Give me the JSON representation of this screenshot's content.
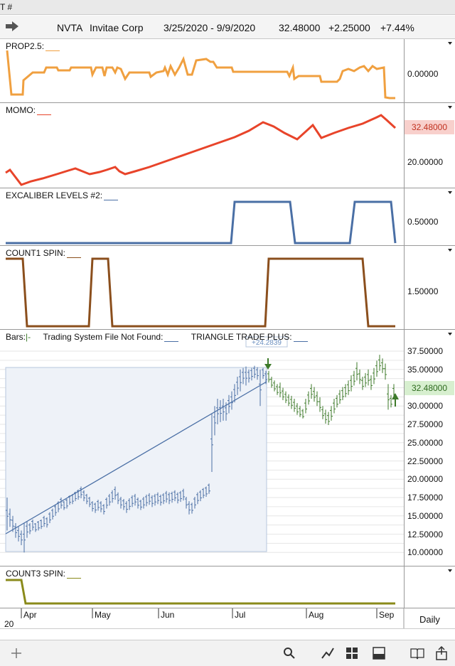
{
  "topbar": {
    "text": "T #"
  },
  "header": {
    "symbol": "NVTA",
    "company": "Invitae Corp",
    "range": "3/25/2020 - 9/9/2020",
    "price": "32.48000",
    "change": "+2.25000",
    "pct": "+7.44%"
  },
  "panes": {
    "prop": {
      "title": "PROP2.5:",
      "ticks": [
        "0.00000"
      ],
      "color": "#f0a040"
    },
    "momo": {
      "title": "MOMO:",
      "ticks": [
        "20.00000"
      ],
      "value": "32.48000",
      "color": "#e8442a"
    },
    "excal": {
      "title": "EXCALIBER LEVELS #2:",
      "ticks": [
        "0.50000"
      ],
      "color": "#4a6fa5"
    },
    "count1": {
      "title": "COUNT1 SPIN:",
      "ticks": [
        "1.50000"
      ],
      "color": "#8b4f1d"
    },
    "bars": {
      "title_bars": "Bars:",
      "title_system": "Trading System File Not Found:",
      "title_triangle": "TRIANGLE TRADE PLUS:",
      "ticks": [
        "37.50000",
        "35.00000",
        "32.50000",
        "30.00000",
        "27.50000",
        "25.00000",
        "22.50000",
        "20.00000",
        "17.50000",
        "15.00000",
        "12.50000",
        "10.00000"
      ],
      "value": "32.48000",
      "signal_label": "+24.2839"
    },
    "count3": {
      "title": "COUNT3 SPIN:",
      "color": "#8a8a1a"
    }
  },
  "xaxis": {
    "months": [
      "Apr",
      "May",
      "Jun",
      "Jul",
      "Aug",
      "Sep"
    ],
    "year": "20",
    "period": "Daily"
  },
  "toolbar": {
    "icons": [
      "add-icon",
      "search-icon",
      "draw-icon",
      "grid-icon",
      "layout-icon",
      "book-icon",
      "share-icon"
    ]
  }
}
